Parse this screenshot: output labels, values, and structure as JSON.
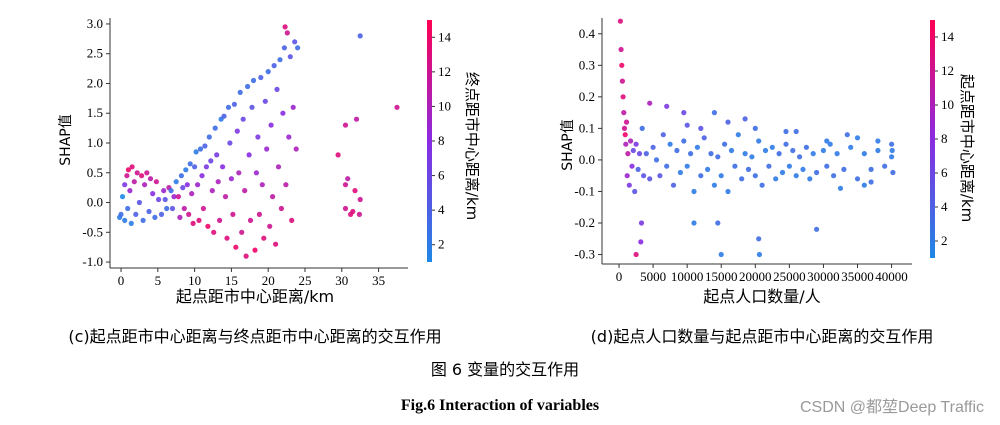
{
  "colors": {
    "low": "#1e88e5",
    "mid": "#8a2be2",
    "high": "#ff0052",
    "axis": "#333333",
    "text": "#111111"
  },
  "figure": {
    "caption_cn": "图 6 变量的交互作用",
    "caption_en": "Fig.6 Interaction of variables",
    "watermark": "CSDN @都堃Deep Traffic"
  },
  "chart_data": [
    {
      "id": "c",
      "type": "scatter",
      "subtitle": "(c)起点距市中心距离与终点距市中心距离的交互作用",
      "xlabel": "起点距市中心距离/km",
      "ylabel": "SHAP值",
      "xlim": [
        -1.5,
        39
      ],
      "ylim": [
        -1.1,
        3.1
      ],
      "xticks": [
        0,
        5,
        10,
        15,
        20,
        25,
        30,
        35
      ],
      "yticks": [
        -1.0,
        -0.5,
        0.0,
        0.5,
        1.0,
        1.5,
        2.0,
        2.5,
        3.0
      ],
      "ytick_labels": [
        "-1.0",
        "-0.5",
        "0.0",
        "0.5",
        "1.0",
        "1.5",
        "2.0",
        "2.5",
        "3.0"
      ],
      "colorbar": {
        "label": "终点距市中心距离/km",
        "min": 1,
        "max": 15,
        "ticks": [
          2,
          4,
          6,
          8,
          10,
          12,
          14
        ]
      },
      "points": [
        [
          -0.2,
          -0.25,
          2
        ],
        [
          0,
          -0.2,
          3
        ],
        [
          0.2,
          0.1,
          1
        ],
        [
          0.5,
          -0.3,
          2
        ],
        [
          0.5,
          0.3,
          7
        ],
        [
          0.8,
          0.45,
          12
        ],
        [
          0.9,
          -0.1,
          3
        ],
        [
          1,
          0.55,
          14
        ],
        [
          1.2,
          0.2,
          9
        ],
        [
          1.4,
          -0.35,
          2
        ],
        [
          1.5,
          0.6,
          13
        ],
        [
          1.8,
          0.35,
          11
        ],
        [
          2,
          -0.2,
          4
        ],
        [
          2.2,
          0.5,
          12
        ],
        [
          2.5,
          0,
          5
        ],
        [
          2.8,
          0.45,
          13
        ],
        [
          3,
          -0.3,
          3
        ],
        [
          3.2,
          0.3,
          10
        ],
        [
          3.5,
          0.5,
          12
        ],
        [
          3.8,
          -0.15,
          4
        ],
        [
          4,
          0.4,
          11
        ],
        [
          4.3,
          0.15,
          8
        ],
        [
          4.6,
          -0.25,
          3
        ],
        [
          4.8,
          0.35,
          12
        ],
        [
          5.1,
          0.05,
          6
        ],
        [
          5.5,
          -0.2,
          4
        ],
        [
          5.8,
          0.2,
          9
        ],
        [
          6,
          0.05,
          5
        ],
        [
          6.2,
          -0.1,
          3
        ],
        [
          6.5,
          0.25,
          11
        ],
        [
          6.8,
          0.2,
          3
        ],
        [
          7,
          -0.1,
          5
        ],
        [
          7.2,
          0.1,
          9
        ],
        [
          7.5,
          0.35,
          2
        ],
        [
          7.8,
          0.1,
          12
        ],
        [
          8,
          -0.25,
          10
        ],
        [
          8.2,
          0.45,
          3
        ],
        [
          8.4,
          0.25,
          6
        ],
        [
          8.6,
          -0.1,
          11
        ],
        [
          8.8,
          0.55,
          2
        ],
        [
          9,
          0.3,
          8
        ],
        [
          9.2,
          -0.2,
          12
        ],
        [
          9.4,
          0.65,
          3
        ],
        [
          9.6,
          0.15,
          10
        ],
        [
          9.8,
          -0.35,
          13
        ],
        [
          10,
          0.6,
          4
        ],
        [
          10.2,
          0.85,
          2
        ],
        [
          10.4,
          0.3,
          9
        ],
        [
          10.6,
          -0.3,
          13
        ],
        [
          10.8,
          0.9,
          3
        ],
        [
          11,
          0.45,
          8
        ],
        [
          11.2,
          -0.1,
          12
        ],
        [
          11.4,
          0.95,
          4
        ],
        [
          11.6,
          0.6,
          7
        ],
        [
          11.8,
          -0.4,
          14
        ],
        [
          12,
          1.1,
          3
        ],
        [
          12.2,
          0.7,
          6
        ],
        [
          12.4,
          0.2,
          10
        ],
        [
          12.6,
          -0.5,
          13
        ],
        [
          12.8,
          1.25,
          3
        ],
        [
          13,
          0.8,
          7
        ],
        [
          13.2,
          0.35,
          10
        ],
        [
          13.4,
          -0.3,
          12
        ],
        [
          13.6,
          1.4,
          2
        ],
        [
          13.8,
          0.6,
          8
        ],
        [
          14,
          1.45,
          4
        ],
        [
          14.2,
          0.1,
          11
        ],
        [
          14.4,
          -0.6,
          13
        ],
        [
          14.6,
          1.6,
          3
        ],
        [
          14.8,
          1,
          6
        ],
        [
          15,
          0.4,
          9
        ],
        [
          15.2,
          -0.2,
          12
        ],
        [
          15.4,
          1.65,
          4
        ],
        [
          15.6,
          -0.75,
          14
        ],
        [
          15.8,
          1.2,
          7
        ],
        [
          16,
          0.5,
          10
        ],
        [
          16.2,
          1.85,
          3
        ],
        [
          16.4,
          -0.5,
          12
        ],
        [
          16.6,
          1.4,
          6
        ],
        [
          16.8,
          0.2,
          11
        ],
        [
          17,
          -0.9,
          13
        ],
        [
          17.2,
          1.95,
          3
        ],
        [
          17.4,
          0.8,
          8
        ],
        [
          17.6,
          -0.3,
          12
        ],
        [
          17.8,
          1.6,
          5
        ],
        [
          18,
          2.05,
          3
        ],
        [
          18.2,
          -0.8,
          14
        ],
        [
          18.4,
          0.5,
          9
        ],
        [
          18.6,
          1.1,
          7
        ],
        [
          18.8,
          -0.2,
          12
        ],
        [
          19,
          2.1,
          4
        ],
        [
          19.2,
          0.3,
          10
        ],
        [
          19.4,
          -0.6,
          13
        ],
        [
          19.6,
          1.7,
          6
        ],
        [
          19.8,
          0.9,
          9
        ],
        [
          20,
          2.2,
          3
        ],
        [
          20.2,
          -0.4,
          12
        ],
        [
          20.4,
          1.3,
          8
        ],
        [
          20.6,
          0.1,
          11
        ],
        [
          20.8,
          2.3,
          4
        ],
        [
          21,
          -0.7,
          13
        ],
        [
          21.2,
          1.9,
          6
        ],
        [
          21.4,
          0.6,
          10
        ],
        [
          21.6,
          2.4,
          3
        ],
        [
          21.8,
          -0.1,
          12
        ],
        [
          22,
          1.5,
          8
        ],
        [
          22.2,
          2.6,
          4
        ],
        [
          22.4,
          0.3,
          11
        ],
        [
          22.6,
          2.85,
          12
        ],
        [
          22.8,
          1.1,
          9
        ],
        [
          23,
          2.45,
          5
        ],
        [
          23.2,
          -0.3,
          13
        ],
        [
          23.4,
          1.6,
          9
        ],
        [
          23.6,
          2.7,
          5
        ],
        [
          23.8,
          0.9,
          10
        ],
        [
          24,
          2.6,
          3
        ],
        [
          22.3,
          2.95,
          13
        ],
        [
          30.5,
          1.3,
          12
        ],
        [
          32.5,
          2.8,
          4
        ],
        [
          32,
          1.4,
          11
        ],
        [
          37.5,
          1.6,
          12
        ],
        [
          30.5,
          -0.1,
          12
        ],
        [
          31.5,
          -0.15,
          13
        ],
        [
          32.5,
          0.05,
          12
        ],
        [
          29.5,
          0.8,
          13
        ],
        [
          30.5,
          0.3,
          12
        ],
        [
          31.8,
          0.2,
          13
        ],
        [
          32.4,
          -0.2,
          12
        ],
        [
          30.8,
          0.4,
          11
        ],
        [
          31.2,
          -0.2,
          13
        ]
      ]
    },
    {
      "id": "d",
      "type": "scatter",
      "subtitle": "(d)起点人口数量与起点距市中心距离的交互作用",
      "xlabel": "起点人口数量/人",
      "ylabel": "SHAP值",
      "xlim": [
        -2500,
        43000
      ],
      "ylim": [
        -0.33,
        0.45
      ],
      "xticks": [
        0,
        5000,
        10000,
        15000,
        20000,
        25000,
        30000,
        35000,
        40000
      ],
      "yticks": [
        -0.3,
        -0.2,
        -0.1,
        0.0,
        0.1,
        0.2,
        0.3,
        0.4
      ],
      "ytick_labels": [
        "-0.3",
        "-0.2",
        "-0.1",
        "0.0",
        "0.1",
        "0.2",
        "0.3",
        "0.4"
      ],
      "colorbar": {
        "label": "起点距市中心距离/km",
        "min": 1,
        "max": 15,
        "ticks": [
          2,
          4,
          6,
          8,
          10,
          12,
          14
        ]
      },
      "points": [
        [
          200,
          0.44,
          13
        ],
        [
          300,
          0.35,
          12
        ],
        [
          400,
          0.3,
          14
        ],
        [
          500,
          0.25,
          12
        ],
        [
          600,
          0.2,
          13
        ],
        [
          700,
          0.15,
          11
        ],
        [
          800,
          0.1,
          12
        ],
        [
          900,
          0.08,
          14
        ],
        [
          1000,
          0.05,
          10
        ],
        [
          1100,
          0.12,
          12
        ],
        [
          1200,
          -0.05,
          9
        ],
        [
          1300,
          0.02,
          11
        ],
        [
          1500,
          -0.08,
          7
        ],
        [
          1700,
          0.06,
          10
        ],
        [
          1900,
          -0.02,
          8
        ],
        [
          2100,
          0.03,
          6
        ],
        [
          2300,
          -0.1,
          5
        ],
        [
          2500,
          0.05,
          7
        ],
        [
          2800,
          -0.03,
          4
        ],
        [
          3000,
          0.02,
          6
        ],
        [
          3200,
          -0.26,
          8
        ],
        [
          3300,
          -0.2,
          7
        ],
        [
          3400,
          0.1,
          3
        ],
        [
          3600,
          -0.05,
          5
        ],
        [
          4000,
          0.02,
          4
        ],
        [
          4500,
          -0.06,
          5
        ],
        [
          5000,
          0.04,
          4
        ],
        [
          5500,
          0,
          3
        ],
        [
          6000,
          -0.05,
          5
        ],
        [
          6500,
          0.08,
          4
        ],
        [
          7000,
          -0.02,
          3
        ],
        [
          7500,
          0.05,
          2
        ],
        [
          8000,
          -0.08,
          4
        ],
        [
          8500,
          0.03,
          3
        ],
        [
          9000,
          -0.04,
          2
        ],
        [
          9500,
          0.06,
          3
        ],
        [
          10000,
          -0.02,
          2
        ],
        [
          10500,
          0.02,
          3
        ],
        [
          11000,
          -0.1,
          2
        ],
        [
          11500,
          0.04,
          2
        ],
        [
          12000,
          -0.05,
          3
        ],
        [
          12500,
          0.07,
          4
        ],
        [
          13000,
          -0.03,
          2
        ],
        [
          13500,
          0.02,
          3
        ],
        [
          14000,
          -0.08,
          2
        ],
        [
          14500,
          0.01,
          3
        ],
        [
          15000,
          -0.05,
          2
        ],
        [
          15500,
          0.05,
          3
        ],
        [
          16000,
          -0.1,
          2
        ],
        [
          16500,
          0.03,
          2
        ],
        [
          17000,
          -0.02,
          3
        ],
        [
          17500,
          0.08,
          2
        ],
        [
          18000,
          -0.06,
          3
        ],
        [
          18500,
          0.02,
          2
        ],
        [
          19000,
          -0.03,
          3
        ],
        [
          19500,
          0.01,
          2
        ],
        [
          20000,
          -0.05,
          3
        ],
        [
          20500,
          0.06,
          2
        ],
        [
          21000,
          -0.08,
          3
        ],
        [
          21500,
          0.03,
          2
        ],
        [
          22000,
          -0.02,
          3
        ],
        [
          22500,
          0.04,
          2
        ],
        [
          23000,
          -0.06,
          2
        ],
        [
          23500,
          0.02,
          3
        ],
        [
          24000,
          -0.04,
          2
        ],
        [
          24500,
          0.05,
          3
        ],
        [
          25000,
          -0.02,
          2
        ],
        [
          25500,
          0.03,
          3
        ],
        [
          26000,
          -0.05,
          2
        ],
        [
          26500,
          0.01,
          3
        ],
        [
          27000,
          -0.03,
          2
        ],
        [
          27500,
          0.04,
          3
        ],
        [
          28000,
          -0.06,
          2
        ],
        [
          28500,
          0.02,
          2
        ],
        [
          29000,
          -0.04,
          3
        ],
        [
          30000,
          0.03,
          2
        ],
        [
          30500,
          -0.02,
          3
        ],
        [
          31000,
          0.05,
          2
        ],
        [
          31500,
          -0.05,
          3
        ],
        [
          32000,
          0.02,
          2
        ],
        [
          33000,
          -0.03,
          3
        ],
        [
          34000,
          0.04,
          2
        ],
        [
          35000,
          -0.06,
          3
        ],
        [
          36000,
          0.02,
          2
        ],
        [
          37000,
          -0.03,
          3
        ],
        [
          38000,
          0.03,
          2
        ],
        [
          39000,
          -0.02,
          3
        ],
        [
          40000,
          0.01,
          2
        ],
        [
          40200,
          -0.04,
          3
        ],
        [
          40100,
          0.03,
          2
        ],
        [
          14500,
          -0.2,
          3
        ],
        [
          15000,
          -0.3,
          2
        ],
        [
          20500,
          -0.25,
          3
        ],
        [
          20600,
          -0.3,
          2
        ],
        [
          29000,
          -0.22,
          3
        ],
        [
          11000,
          -0.2,
          2
        ],
        [
          2500,
          -0.3,
          13
        ],
        [
          9500,
          0.15,
          6
        ],
        [
          12000,
          0.1,
          5
        ],
        [
          16000,
          0.12,
          4
        ],
        [
          20000,
          0.1,
          3
        ],
        [
          24500,
          0.09,
          3
        ],
        [
          7000,
          0.17,
          7
        ],
        [
          18500,
          0.13,
          4
        ],
        [
          26000,
          0.09,
          3
        ],
        [
          14000,
          0.15,
          3
        ],
        [
          4500,
          0.18,
          10
        ],
        [
          10000,
          0.11,
          5
        ],
        [
          30500,
          0.06,
          2
        ],
        [
          33500,
          0.08,
          3
        ],
        [
          38000,
          0.06,
          2
        ],
        [
          40000,
          0.05,
          3
        ],
        [
          35000,
          0.07,
          2
        ],
        [
          36000,
          -0.08,
          2
        ],
        [
          37000,
          -0.07,
          3
        ],
        [
          32500,
          -0.09,
          2
        ]
      ]
    }
  ]
}
